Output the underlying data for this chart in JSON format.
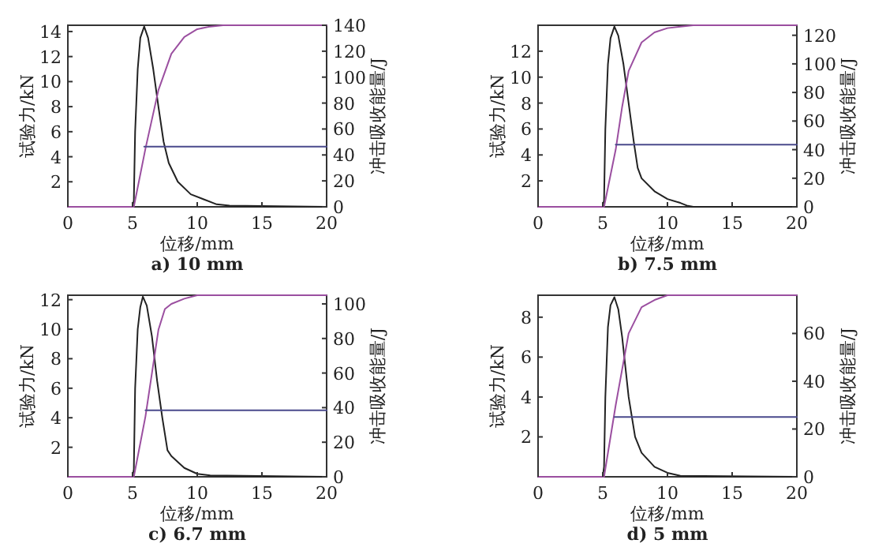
{
  "chart_data": [
    {
      "type": "line",
      "title": "a) 10 mm",
      "xlabel": "位移/mm",
      "ylabel": "试验力/kN",
      "y2label": "冲击吸收能量/J",
      "xlim": [
        0,
        20
      ],
      "xticks": [
        0,
        5,
        10,
        15,
        20
      ],
      "ylim": [
        0,
        14.5
      ],
      "yticks": [
        2,
        4,
        6,
        8,
        10,
        12,
        14
      ],
      "y2lim": [
        0,
        140
      ],
      "y2ticks": [
        0,
        20,
        40,
        60,
        80,
        100,
        120,
        140
      ],
      "series": [
        {
          "color": "#222222",
          "x": [
            0,
            5.0,
            5.1,
            5.2,
            5.4,
            5.6,
            5.9,
            6.2,
            6.6,
            7.0,
            7.4,
            7.8,
            8.5,
            9.5,
            10.5,
            11.5,
            12.5,
            20
          ],
          "values": [
            0,
            0,
            0.5,
            6,
            11,
            13.5,
            14.4,
            13.5,
            11,
            8,
            5.2,
            3.5,
            2,
            1,
            0.6,
            0.2,
            0.1,
            0
          ]
        },
        {
          "color": "#9b4fa0",
          "axis": "y2",
          "x": [
            0,
            5.1,
            6,
            7,
            8,
            9,
            10,
            11,
            12,
            20
          ],
          "values": [
            0,
            0,
            45,
            90,
            118,
            131,
            137,
            139,
            140,
            140
          ]
        },
        {
          "color": "#4a4a8c",
          "x": [
            5.9,
            20
          ],
          "values": [
            4.8,
            4.8
          ]
        }
      ]
    },
    {
      "type": "line",
      "title": "b) 7.5 mm",
      "xlabel": "位移/mm",
      "ylabel": "试验力/kN",
      "y2label": "冲击吸收能量/J",
      "xlim": [
        0,
        20
      ],
      "xticks": [
        0,
        5,
        10,
        15,
        20
      ],
      "ylim": [
        0,
        14
      ],
      "yticks": [
        2,
        4,
        6,
        8,
        10,
        12
      ],
      "y2lim": [
        0,
        127
      ],
      "y2ticks": [
        0,
        20,
        40,
        60,
        80,
        100,
        120
      ],
      "series": [
        {
          "color": "#222222",
          "x": [
            0,
            5.0,
            5.1,
            5.2,
            5.4,
            5.6,
            5.9,
            6.2,
            6.6,
            7.0,
            7.4,
            7.7,
            8,
            9,
            10,
            11,
            11.5,
            12,
            20
          ],
          "values": [
            0,
            0,
            0.5,
            6,
            11,
            13,
            13.9,
            13.2,
            11,
            8,
            5,
            3,
            2.2,
            1.2,
            0.6,
            0.3,
            0.1,
            0,
            0
          ]
        },
        {
          "color": "#9b4fa0",
          "axis": "y2",
          "x": [
            0,
            5.1,
            6,
            6.5,
            7,
            8,
            9,
            10,
            11,
            12,
            20
          ],
          "values": [
            0,
            0,
            40,
            70,
            95,
            115,
            122,
            125,
            126,
            127,
            127
          ]
        },
        {
          "color": "#4a4a8c",
          "x": [
            6,
            20
          ],
          "values": [
            4.8,
            4.8
          ]
        }
      ]
    },
    {
      "type": "line",
      "title": "c) 6.7 mm",
      "xlabel": "位移/mm",
      "ylabel": "试验力/kN",
      "y2label": "冲击吸收能量/J",
      "xlim": [
        0,
        20
      ],
      "xticks": [
        0,
        5,
        10,
        15,
        20
      ],
      "ylim": [
        0,
        12.3
      ],
      "yticks": [
        2,
        4,
        6,
        8,
        10,
        12
      ],
      "y2lim": [
        0,
        105
      ],
      "y2ticks": [
        0,
        20,
        40,
        60,
        80,
        100
      ],
      "series": [
        {
          "color": "#222222",
          "x": [
            0,
            5.0,
            5.1,
            5.2,
            5.4,
            5.6,
            5.8,
            6.1,
            6.5,
            6.9,
            7.3,
            7.7,
            8,
            9,
            10,
            11,
            20
          ],
          "values": [
            0,
            0,
            0.5,
            6,
            10,
            11.5,
            12.2,
            11.6,
            9.5,
            6.5,
            4,
            1.8,
            1.4,
            0.6,
            0.2,
            0.1,
            0
          ]
        },
        {
          "color": "#9b4fa0",
          "axis": "y2",
          "x": [
            0,
            5.1,
            6,
            6.5,
            7,
            7.5,
            8,
            9,
            10,
            20
          ],
          "values": [
            0,
            0,
            35,
            60,
            85,
            97,
            100,
            103,
            105,
            105
          ]
        },
        {
          "color": "#4a4a8c",
          "x": [
            6,
            20
          ],
          "values": [
            4.5,
            4.5
          ]
        }
      ]
    },
    {
      "type": "line",
      "title": "d) 5 mm",
      "xlabel": "位移/mm",
      "ylabel": "试验力/kN",
      "y2label": "冲击吸收能量/J",
      "xlim": [
        0,
        20
      ],
      "xticks": [
        0,
        5,
        10,
        15,
        20
      ],
      "ylim": [
        0,
        9.1
      ],
      "yticks": [
        2,
        4,
        6,
        8
      ],
      "y2lim": [
        0,
        76
      ],
      "y2ticks": [
        0,
        20,
        40,
        60
      ],
      "series": [
        {
          "color": "#222222",
          "x": [
            0,
            5.0,
            5.1,
            5.2,
            5.4,
            5.6,
            5.9,
            6.2,
            6.5,
            7,
            7.5,
            8,
            9,
            10,
            11,
            20
          ],
          "values": [
            0,
            0,
            0.5,
            4,
            7.5,
            8.6,
            9.0,
            8.4,
            7,
            4,
            2,
            1.2,
            0.5,
            0.2,
            0.05,
            0
          ]
        },
        {
          "color": "#9b4fa0",
          "axis": "y2",
          "x": [
            0,
            5.1,
            6,
            7,
            8,
            9,
            10,
            20
          ],
          "values": [
            0,
            0,
            30,
            60,
            71,
            74,
            76,
            76
          ]
        },
        {
          "color": "#4a4a8c",
          "x": [
            5.9,
            20
          ],
          "values": [
            3.0,
            3.0
          ]
        }
      ]
    }
  ]
}
